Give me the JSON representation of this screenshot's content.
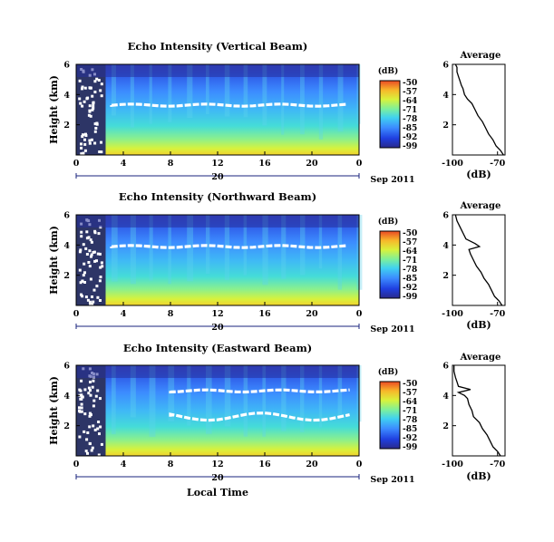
{
  "chart_data": [
    {
      "type": "heatmap",
      "title": "Echo Intensity (Vertical Beam)",
      "ylabel": "Height (km)",
      "xlabel": "",
      "x_ticks": [
        "0",
        "4",
        "8",
        "12",
        "16",
        "20",
        "0"
      ],
      "y_ticks": [
        "6",
        "4",
        "2"
      ],
      "xlim": [
        0,
        24
      ],
      "ylim": [
        0,
        6
      ],
      "date_label": "20",
      "month_label": "Sep 2011",
      "layer_heights_km": [
        3.3
      ],
      "colorbar": {
        "unit": "(dB)",
        "levels": [
          "-50",
          "-57",
          "-64",
          "-71",
          "-78",
          "-85",
          "-92",
          "-99"
        ]
      },
      "average": {
        "title": "Average",
        "xlabel": "(dB)",
        "x_ticks": [
          "-100",
          "-70"
        ],
        "y_ticks": [
          "6",
          "4",
          "2"
        ],
        "xlim": [
          -100,
          -65
        ],
        "profile_db": [
          [
            0.0,
            -66
          ],
          [
            0.3,
            -68
          ],
          [
            0.6,
            -71
          ],
          [
            1.0,
            -73
          ],
          [
            1.4,
            -76
          ],
          [
            1.8,
            -78
          ],
          [
            2.2,
            -80
          ],
          [
            2.6,
            -83
          ],
          [
            3.0,
            -85
          ],
          [
            3.4,
            -87
          ],
          [
            3.7,
            -90
          ],
          [
            4.0,
            -92
          ],
          [
            4.4,
            -93
          ],
          [
            4.6,
            -94
          ],
          [
            4.9,
            -95
          ],
          [
            5.2,
            -96
          ],
          [
            5.5,
            -97
          ],
          [
            5.8,
            -97
          ],
          [
            6.0,
            -98
          ]
        ]
      }
    },
    {
      "type": "heatmap",
      "title": "Echo Intensity (Northward Beam)",
      "ylabel": "Height (km)",
      "xlabel": "",
      "x_ticks": [
        "0",
        "4",
        "8",
        "12",
        "16",
        "20",
        "0"
      ],
      "y_ticks": [
        "6",
        "4",
        "2"
      ],
      "xlim": [
        0,
        24
      ],
      "ylim": [
        0,
        6
      ],
      "date_label": "20",
      "month_label": "Sep 2011",
      "layer_heights_km": [
        3.9
      ],
      "colorbar": {
        "unit": "(dB)",
        "levels": [
          "-50",
          "-57",
          "-64",
          "-71",
          "-78",
          "-85",
          "-92",
          "-99"
        ]
      },
      "average": {
        "title": "Average",
        "xlabel": "(dB)",
        "x_ticks": [
          "-100",
          "-70"
        ],
        "y_ticks": [
          "6",
          "4",
          "2"
        ],
        "xlim": [
          -100,
          -65
        ],
        "profile_db": [
          [
            0.0,
            -67
          ],
          [
            0.3,
            -69
          ],
          [
            0.6,
            -72
          ],
          [
            1.0,
            -74
          ],
          [
            1.4,
            -76
          ],
          [
            1.8,
            -79
          ],
          [
            2.2,
            -81
          ],
          [
            2.6,
            -84
          ],
          [
            3.0,
            -86
          ],
          [
            3.4,
            -88
          ],
          [
            3.7,
            -89
          ],
          [
            3.9,
            -82
          ],
          [
            4.1,
            -85
          ],
          [
            4.4,
            -91
          ],
          [
            4.8,
            -93
          ],
          [
            5.2,
            -95
          ],
          [
            5.6,
            -97
          ],
          [
            6.0,
            -98
          ]
        ]
      }
    },
    {
      "type": "heatmap",
      "title": "Echo Intensity (Eastward Beam)",
      "ylabel": "Height (km)",
      "xlabel": "Local Time",
      "x_ticks": [
        "0",
        "4",
        "8",
        "12",
        "16",
        "20",
        "0"
      ],
      "y_ticks": [
        "6",
        "4",
        "2"
      ],
      "xlim": [
        0,
        24
      ],
      "ylim": [
        0,
        6
      ],
      "date_label": "20",
      "month_label": "Sep 2011",
      "layer_heights_km": [
        4.3,
        2.6
      ],
      "colorbar": {
        "unit": "(dB)",
        "levels": [
          "-50",
          "-57",
          "-64",
          "-71",
          "-78",
          "-85",
          "-92",
          "-99"
        ]
      },
      "average": {
        "title": "Average",
        "xlabel": "(dB)",
        "x_ticks": [
          "-100",
          "-70"
        ],
        "y_ticks": [
          "6",
          "4",
          "2"
        ],
        "xlim": [
          -100,
          -65
        ],
        "profile_db": [
          [
            0.0,
            -68
          ],
          [
            0.3,
            -70
          ],
          [
            0.6,
            -73
          ],
          [
            1.0,
            -75
          ],
          [
            1.4,
            -77
          ],
          [
            1.8,
            -80
          ],
          [
            2.2,
            -82
          ],
          [
            2.6,
            -86
          ],
          [
            3.0,
            -87
          ],
          [
            3.4,
            -89
          ],
          [
            3.8,
            -90
          ],
          [
            4.0,
            -92
          ],
          [
            4.2,
            -96
          ],
          [
            4.4,
            -88
          ],
          [
            4.6,
            -96
          ],
          [
            4.9,
            -97
          ],
          [
            5.2,
            -98
          ],
          [
            5.6,
            -99
          ],
          [
            6.0,
            -99
          ]
        ]
      }
    }
  ],
  "colors": {
    "colormap": [
      "#2a2a8c",
      "#1f3fe0",
      "#3c8cff",
      "#40d2f0",
      "#7ef09a",
      "#d8f23c",
      "#f7b82a",
      "#ea4a24"
    ],
    "missing": "#2d3566",
    "layer": "#ffffff",
    "axis": "#000000"
  }
}
